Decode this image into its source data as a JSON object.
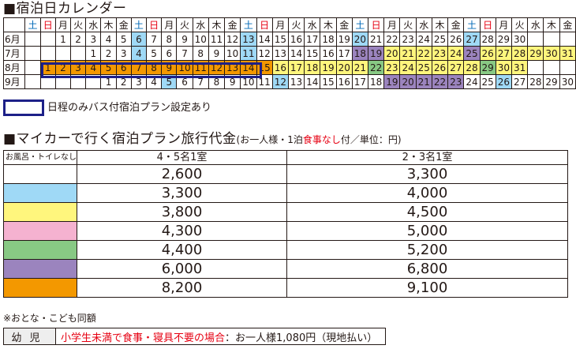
{
  "calendar": {
    "title": "■宿泊日カレンダー",
    "weekdays": [
      "土",
      "日",
      "月",
      "火",
      "水",
      "木",
      "金",
      "土",
      "日",
      "月",
      "火",
      "水",
      "木",
      "金",
      "土",
      "日",
      "月",
      "火",
      "水",
      "木",
      "金",
      "土",
      "日",
      "月",
      "火",
      "水",
      "木",
      "金",
      "土",
      "日",
      "月",
      "火",
      "水",
      "木",
      "金"
    ],
    "months": [
      {
        "label": "6月",
        "start": 2,
        "days": 30,
        "colors": {
          "b": [
            6,
            13,
            20,
            27
          ],
          "v": [],
          "y": [],
          "g": [],
          "o": []
        }
      },
      {
        "label": "7月",
        "start": 4,
        "days": 31,
        "colors": {
          "b": [
            4,
            11
          ],
          "v": [
            18,
            19,
            25
          ],
          "y": [
            20,
            21,
            22,
            23,
            24,
            26,
            27,
            28,
            29,
            30,
            31
          ]
        }
      },
      {
        "label": "8月",
        "start": 1,
        "days": 31,
        "colors": {
          "o": [
            1,
            2,
            3,
            4,
            5,
            6,
            7,
            8,
            9,
            10,
            11,
            12,
            13,
            14,
            15
          ],
          "y": [
            16,
            17,
            18,
            19,
            20,
            21
          ],
          "g": [
            22,
            29
          ],
          "y2": [
            23,
            24,
            25,
            26,
            27,
            28,
            30,
            31
          ]
        }
      },
      {
        "label": "9月",
        "start": 5,
        "days": 30,
        "colors": {
          "b": [
            5,
            12,
            26
          ],
          "v": [
            19,
            20,
            21,
            22,
            23
          ]
        }
      }
    ]
  },
  "legend": {
    "text": "日程のみバス付宿泊プラン設定あり",
    "color": "#1d2088"
  },
  "price": {
    "title": "■マイカーで行く宿泊プラン旅行代金",
    "note_pre": "(お一人様・1泊",
    "note_red": "食事なし",
    "note_post": "付／単位：円)",
    "header": [
      "お風呂・トイレなし",
      "4・5名1室",
      "2・3名1室"
    ],
    "rows": [
      {
        "color": "#ffffff",
        "a": "2,600",
        "b": "3,300"
      },
      {
        "color": "#9fd9f6",
        "a": "3,300",
        "b": "4,000"
      },
      {
        "color": "#fff67d",
        "a": "3,800",
        "b": "4,500"
      },
      {
        "color": "#f5b2d0",
        "a": "4,300",
        "b": "5,000"
      },
      {
        "color": "#88c984",
        "a": "4,400",
        "b": "5,200"
      },
      {
        "color": "#9b84be",
        "a": "6,000",
        "b": "6,800"
      },
      {
        "color": "#f39800",
        "a": "8,200",
        "b": "9,100"
      }
    ]
  },
  "note": "※おとな・こども同額",
  "infant": {
    "label": "幼児",
    "red": "小学生未満で食事・寝具不要の場合",
    "rest": "：お一人様1,080円（現地払い）"
  }
}
